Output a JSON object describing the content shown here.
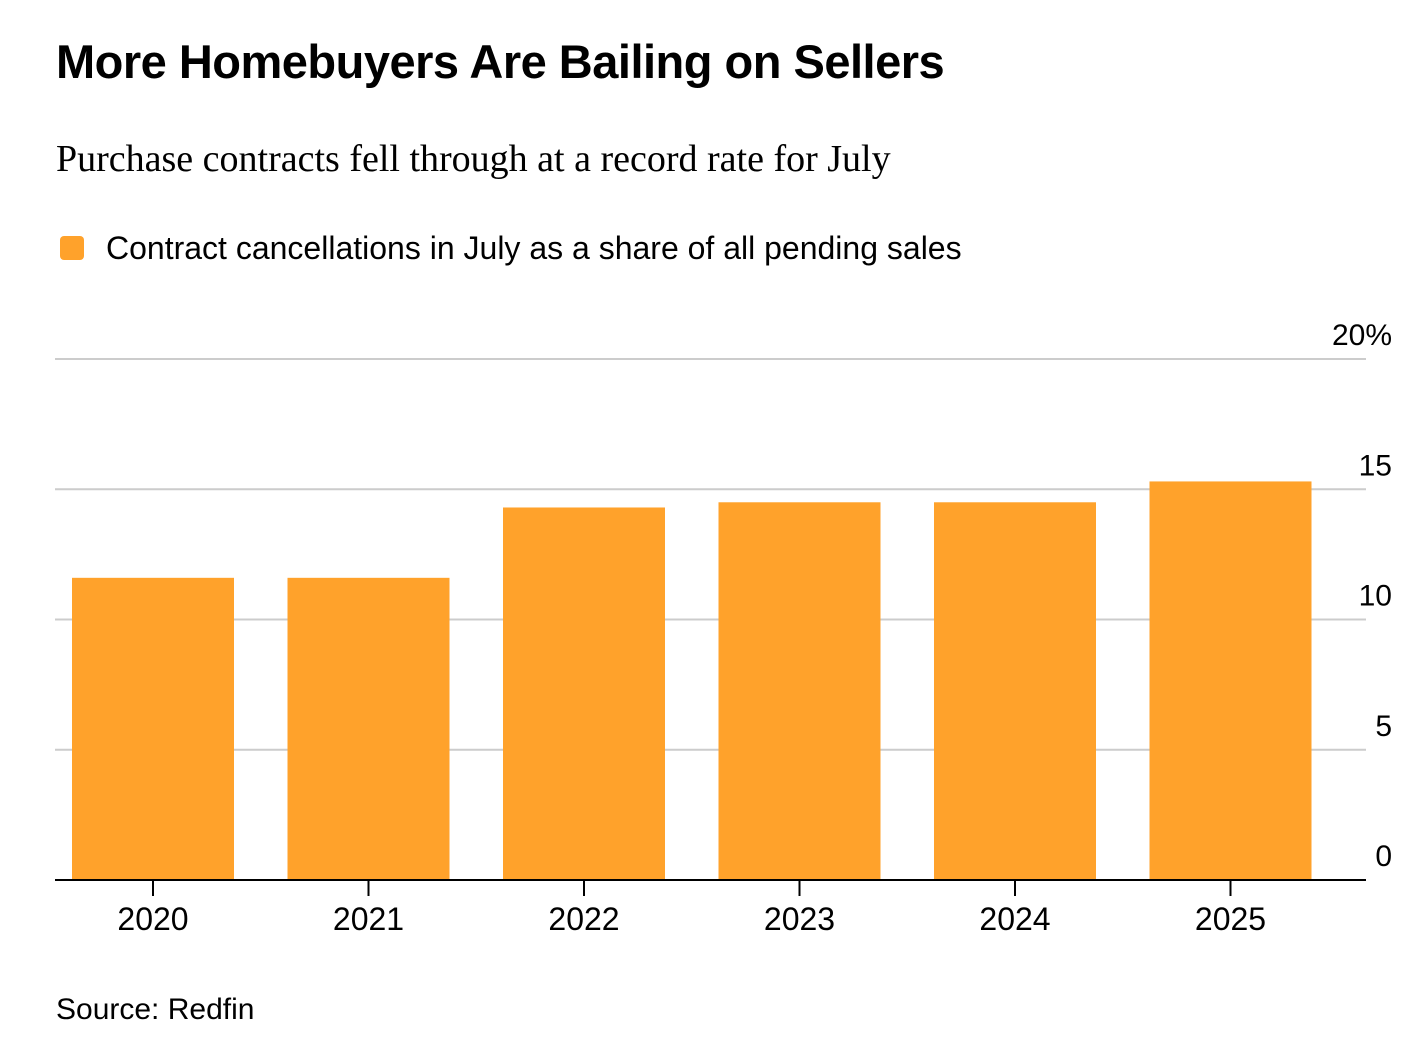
{
  "title": "More Homebuyers Are Bailing on Sellers",
  "subtitle": "Purchase contracts fell through at a record rate for July",
  "legend": {
    "label": "Contract cancellations in July as a share of all pending sales"
  },
  "source": "Source: Redfin",
  "colors": {
    "bar": "#FFA22B",
    "grid": "#CCCCCC",
    "axis": "#000000",
    "text": "#000000"
  },
  "chart_data": {
    "type": "bar",
    "categories": [
      "2020",
      "2021",
      "2022",
      "2023",
      "2024",
      "2025"
    ],
    "series": [
      {
        "name": "Contract cancellations in July as a share of all pending sales",
        "values": [
          11.6,
          11.6,
          14.3,
          14.5,
          14.5,
          15.3
        ]
      }
    ],
    "ylim": [
      0,
      20
    ],
    "yticks": [
      0,
      5,
      10,
      15,
      20
    ],
    "ytick_labels": [
      "0",
      "5",
      "10",
      "15",
      "20%"
    ],
    "y_axis_position": "right",
    "grid": true,
    "legend_position": "top-left",
    "xlabel": "",
    "ylabel": ""
  }
}
